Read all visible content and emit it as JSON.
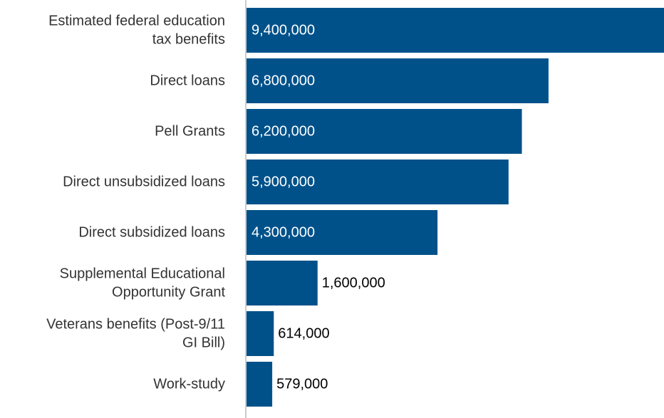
{
  "chart_data": {
    "type": "bar",
    "orientation": "horizontal",
    "categories": [
      "Estimated federal education tax benefits",
      "Direct loans",
      "Pell Grants",
      "Direct unsubsidized loans",
      "Direct subsidized loans",
      "Supplemental Educational Opportunity Grant",
      "Veterans benefits (Post-9/11 GI Bill)",
      "Work-study"
    ],
    "category_label_lines": [
      [
        "Estimated federal education",
        "tax benefits"
      ],
      [
        "Direct loans"
      ],
      [
        "Pell Grants"
      ],
      [
        "Direct unsubsidized loans"
      ],
      [
        "Direct subsidized loans"
      ],
      [
        "Supplemental Educational",
        "Opportunity Grant"
      ],
      [
        "Veterans benefits (Post-9/11",
        "GI Bill)"
      ],
      [
        "Work-study"
      ]
    ],
    "values": [
      9400000,
      6800000,
      6200000,
      5900000,
      4300000,
      1600000,
      614000,
      579000
    ],
    "value_labels": [
      "9,400,000",
      "6,800,000",
      "6,200,000",
      "5,900,000",
      "4,300,000",
      "1,600,000",
      "614,000",
      "579,000"
    ],
    "title": "",
    "xlabel": "",
    "ylabel": "",
    "xlim": [
      0,
      9400000
    ],
    "grid": false,
    "legend": "none",
    "colors": {
      "bar": "#00518a",
      "axis": "#cccccc",
      "label_inside": "#ffffff",
      "label_outside": "#000000",
      "category_text": "#333333"
    }
  }
}
